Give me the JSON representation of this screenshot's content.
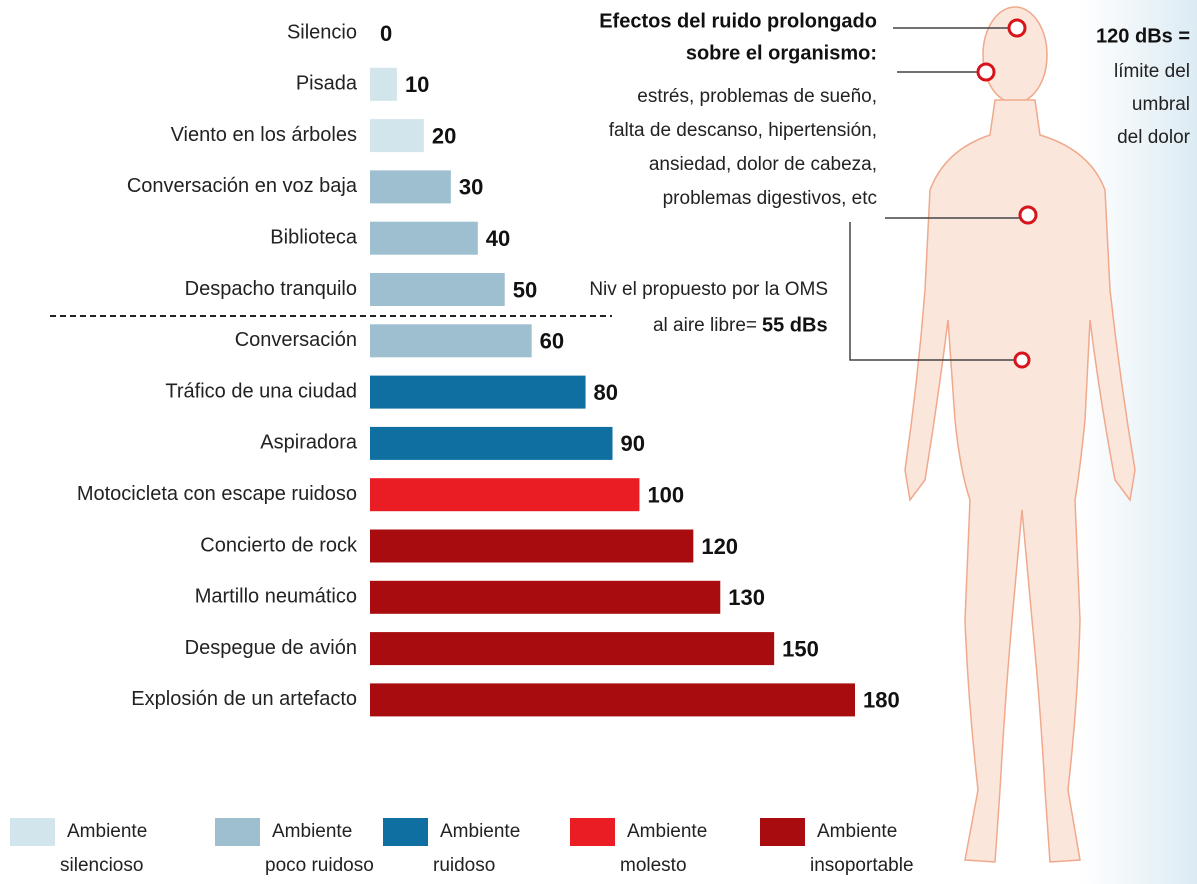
{
  "chart_data": {
    "type": "bar",
    "categories": [
      "Silencio",
      "Pisada",
      "Viento en los árboles",
      "Conversación en voz baja",
      "Biblioteca",
      "Despacho tranquilo",
      "Conversación",
      "Tráfico de una ciudad",
      "Aspiradora",
      "Motocicleta con escape ruidoso",
      "Concierto de rock",
      "Martillo neumático",
      "Despegue de avión",
      "Explosión de un artefacto"
    ],
    "values": [
      0,
      10,
      20,
      30,
      40,
      50,
      60,
      80,
      90,
      100,
      120,
      130,
      150,
      180
    ],
    "colors": [
      "#d3e5ec",
      "#d3e5ec",
      "#d3e5ec",
      "#9dbfd0",
      "#9dbfd0",
      "#9dbfd0",
      "#9dbfd0",
      "#0f6fa0",
      "#0f6fa0",
      "#ea1c24",
      "#a80c0f",
      "#a80c0f",
      "#a80c0f",
      "#a80c0f"
    ],
    "legend": [
      {
        "label": [
          "Ambiente",
          "silencioso"
        ],
        "color": "#d3e5ec"
      },
      {
        "label": [
          "Ambiente",
          "poco ruidoso"
        ],
        "color": "#9dbfd0"
      },
      {
        "label": [
          "Ambiente",
          "ruidoso"
        ],
        "color": "#0f6fa0"
      },
      {
        "label": [
          "Ambiente",
          "molesto"
        ],
        "color": "#ea1c24"
      },
      {
        "label": [
          "Ambiente",
          "insoportable"
        ],
        "color": "#a80c0f"
      }
    ],
    "annotations": {
      "effects_title": [
        "Efectos del ruido prolongado",
        "sobre el  organismo:"
      ],
      "effects_text": [
        "estrés, problemas de sueño,",
        "falta de descanso, hipertensión,",
        "ansiedad, dolor de cabeza,",
        "problemas digestivos, etc"
      ],
      "pain_title": "120 dBs =",
      "pain_text": [
        "límite del",
        "umbral",
        "del dolor"
      ],
      "oms_text": [
        "Niv el propuesto por la OMS",
        "al aire libre="
      ],
      "oms_value": "55 dBs"
    }
  }
}
